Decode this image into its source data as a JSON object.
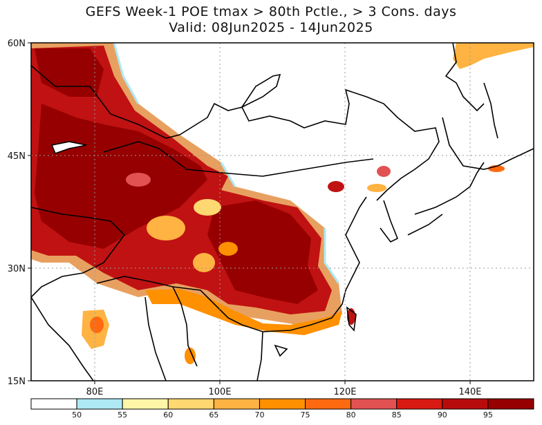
{
  "title": {
    "line1": "GEFS Week-1 POE tmax > 80th Pctle., > 3 Cons. days",
    "line2": "Valid: 08Jun2025 - 14Jun2025"
  },
  "axes": {
    "lat_labels": [
      "60N",
      "45N",
      "30N",
      "15N"
    ],
    "lon_labels": [
      "80E",
      "100E",
      "120E",
      "140E"
    ]
  },
  "colorbar": {
    "colors": [
      "#ffffff",
      "#aee9f5",
      "#fff6a8",
      "#ffd871",
      "#ffb342",
      "#ff9000",
      "#ff6a10",
      "#e25252",
      "#d81a12",
      "#b80c0c",
      "#960000"
    ],
    "tick_labels": [
      "50",
      "55",
      "60",
      "65",
      "70",
      "75",
      "80",
      "85",
      "90",
      "95"
    ]
  },
  "legend_colors": {
    "dark_red": "#960000",
    "red": "#c81010",
    "orange": "#ff9000",
    "yellow": "#ffd871"
  }
}
